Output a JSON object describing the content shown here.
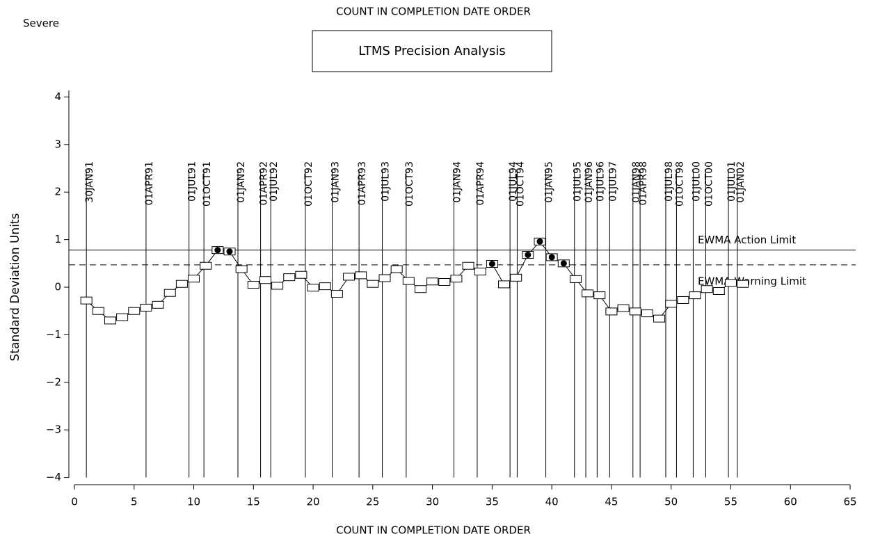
{
  "chart_data": {
    "type": "line",
    "title": "LTMS Precision Analysis",
    "corner_label": "Severe",
    "top_label": "COUNT IN COMPLETION DATE ORDER",
    "x_label": "COUNT IN COMPLETION DATE ORDER",
    "y_label": "Standard Deviation Units",
    "x": [
      1,
      2,
      3,
      4,
      5,
      6,
      7,
      8,
      9,
      10,
      11,
      12,
      13,
      14,
      15,
      16,
      17,
      18,
      19,
      20,
      21,
      22,
      23,
      24,
      25,
      26,
      27,
      28,
      29,
      30,
      31,
      32,
      33,
      34,
      35,
      36,
      37,
      38,
      39,
      40,
      41,
      42,
      43,
      44,
      45,
      46,
      47,
      48,
      49,
      50,
      51,
      52,
      53,
      54,
      55,
      56
    ],
    "series": [
      {
        "color": "#000000",
        "values": [
          -0.28,
          -0.5,
          -0.7,
          -0.63,
          -0.5,
          -0.43,
          -0.37,
          -0.12,
          0.07,
          0.18,
          0.45,
          0.78,
          0.75,
          0.38,
          0.05,
          0.15,
          0.03,
          0.21,
          0.26,
          -0.01,
          0.02,
          -0.14,
          0.22,
          0.25,
          0.07,
          0.19,
          0.38,
          0.13,
          -0.04,
          0.12,
          0.11,
          0.18,
          0.45,
          0.33,
          0.49,
          0.06,
          0.2,
          0.68,
          0.96,
          0.63,
          0.5,
          0.17,
          -0.13,
          -0.17,
          -0.51,
          -0.44,
          -0.51,
          -0.55,
          -0.66,
          -0.35,
          -0.27,
          -0.17,
          -0.04,
          -0.08,
          0.09,
          0.07
        ]
      }
    ],
    "limits": [
      {
        "label": "EWMA Action Limit",
        "value": 0.78,
        "style": "solid"
      },
      {
        "label": "EWMA Warning Limit",
        "value": 0.47,
        "style": "dashed"
      }
    ],
    "date_lines": [
      {
        "label": "30JAN91",
        "position": 1.0
      },
      {
        "label": "01APR91",
        "position": 6.0
      },
      {
        "label": "01JUL91",
        "position": 9.6
      },
      {
        "label": "01OCT91",
        "position": 10.85
      },
      {
        "label": "01JAN92",
        "position": 13.7
      },
      {
        "label": "01APR92",
        "position": 15.6
      },
      {
        "label": "01JUL92",
        "position": 16.45
      },
      {
        "label": "01OCT92",
        "position": 19.35
      },
      {
        "label": "01JAN93",
        "position": 21.6
      },
      {
        "label": "01APR93",
        "position": 23.85
      },
      {
        "label": "01JUL93",
        "position": 25.8
      },
      {
        "label": "01OCT93",
        "position": 27.8
      },
      {
        "label": "01JAN94",
        "position": 31.8
      },
      {
        "label": "01APR94",
        "position": 33.75
      },
      {
        "label": "01JUL94",
        "position": 36.5
      },
      {
        "label": "01OCT94",
        "position": 37.1
      },
      {
        "label": "01JAN95",
        "position": 39.5
      },
      {
        "label": "01JUL95",
        "position": 41.9
      },
      {
        "label": "01JAN96",
        "position": 42.85
      },
      {
        "label": "01JUL96",
        "position": 43.8
      },
      {
        "label": "01JUL97",
        "position": 44.85
      },
      {
        "label": "01JAN98",
        "position": 46.8
      },
      {
        "label": "01APR98",
        "position": 47.4
      },
      {
        "label": "01JUL98",
        "position": 49.55
      },
      {
        "label": "01OCT98",
        "position": 50.45
      },
      {
        "label": "01JUL00",
        "position": 51.85
      },
      {
        "label": "01OCT00",
        "position": 52.9
      },
      {
        "label": "01JUL01",
        "position": 54.8
      },
      {
        "label": "01JAN02",
        "position": 55.55
      }
    ],
    "xlim": [
      0,
      65
    ],
    "xticks": [
      0,
      5,
      10,
      15,
      20,
      25,
      30,
      35,
      40,
      45,
      50,
      55,
      60,
      65
    ],
    "ylim": [
      -4,
      4
    ],
    "yticks": [
      {
        "value": -4,
        "label": "−4"
      },
      {
        "value": -3,
        "label": "−3"
      },
      {
        "value": -2,
        "label": "−2"
      },
      {
        "value": -1,
        "label": "−1"
      },
      0,
      1,
      2,
      3,
      4
    ]
  }
}
